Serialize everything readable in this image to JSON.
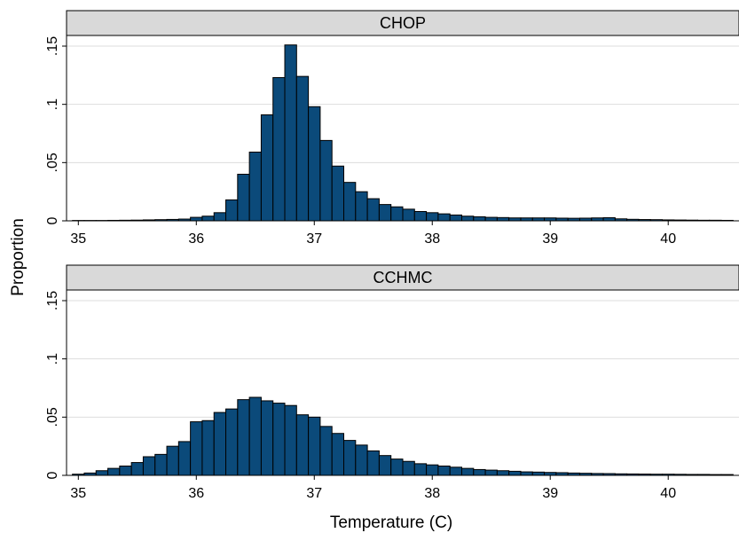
{
  "figure": {
    "ylabel": "Proportion",
    "xlabel": "Temperature (C)"
  },
  "chart_data": [
    {
      "type": "bar",
      "title": "CHOP",
      "bin_width": 0.1,
      "xlim": [
        34.9,
        40.6
      ],
      "ylim": [
        0,
        0.15
      ],
      "xticks": [
        35,
        36,
        37,
        38,
        39,
        40
      ],
      "xtick_labels": [
        "35",
        "36",
        "37",
        "38",
        "39",
        "40"
      ],
      "yticks": [
        0,
        0.05,
        0.1,
        0.15
      ],
      "ytick_labels": [
        "0",
        ".05",
        ".1",
        ".15"
      ],
      "grid": true,
      "bar_color": "#0b4a7a",
      "bin_start": [
        34.95,
        35.05,
        35.15,
        35.25,
        35.35,
        35.45,
        35.55,
        35.65,
        35.75,
        35.85,
        35.95,
        36.05,
        36.15,
        36.25,
        36.35,
        36.45,
        36.55,
        36.65,
        36.75,
        36.85,
        36.95,
        37.05,
        37.15,
        37.25,
        37.35,
        37.45,
        37.55,
        37.65,
        37.75,
        37.85,
        37.95,
        38.05,
        38.15,
        38.25,
        38.35,
        38.45,
        38.55,
        38.65,
        38.75,
        38.85,
        38.95,
        39.05,
        39.15,
        39.25,
        39.35,
        39.45,
        39.55,
        39.65,
        39.75,
        39.85,
        39.95,
        40.05,
        40.15,
        40.25,
        40.35,
        40.45
      ],
      "values": [
        0.0003,
        0.0003,
        0.0003,
        0.0004,
        0.0005,
        0.0006,
        0.0008,
        0.001,
        0.0012,
        0.0015,
        0.003,
        0.004,
        0.007,
        0.018,
        0.04,
        0.059,
        0.091,
        0.123,
        0.151,
        0.124,
        0.098,
        0.069,
        0.047,
        0.033,
        0.025,
        0.019,
        0.014,
        0.012,
        0.01,
        0.008,
        0.007,
        0.006,
        0.005,
        0.004,
        0.0035,
        0.003,
        0.0028,
        0.0025,
        0.0025,
        0.0025,
        0.0025,
        0.0023,
        0.0022,
        0.0023,
        0.0025,
        0.0027,
        0.0017,
        0.0013,
        0.0011,
        0.001,
        0.0008,
        0.0007,
        0.0006,
        0.0005,
        0.0005,
        0.0004
      ]
    },
    {
      "type": "bar",
      "title": "CCHMC",
      "bin_width": 0.1,
      "xlim": [
        34.9,
        40.6
      ],
      "ylim": [
        0,
        0.15
      ],
      "xticks": [
        35,
        36,
        37,
        38,
        39,
        40
      ],
      "xtick_labels": [
        "35",
        "36",
        "37",
        "38",
        "39",
        "40"
      ],
      "yticks": [
        0,
        0.05,
        0.1,
        0.15
      ],
      "ytick_labels": [
        "0",
        ".05",
        ".1",
        ".15"
      ],
      "grid": true,
      "bar_color": "#0b4a7a",
      "bin_start": [
        34.95,
        35.05,
        35.15,
        35.25,
        35.35,
        35.45,
        35.55,
        35.65,
        35.75,
        35.85,
        35.95,
        36.05,
        36.15,
        36.25,
        36.35,
        36.45,
        36.55,
        36.65,
        36.75,
        36.85,
        36.95,
        37.05,
        37.15,
        37.25,
        37.35,
        37.45,
        37.55,
        37.65,
        37.75,
        37.85,
        37.95,
        38.05,
        38.15,
        38.25,
        38.35,
        38.45,
        38.55,
        38.65,
        38.75,
        38.85,
        38.95,
        39.05,
        39.15,
        39.25,
        39.35,
        39.45,
        39.55,
        39.65,
        39.75,
        39.85,
        39.95,
        40.05,
        40.15,
        40.25,
        40.35,
        40.45
      ],
      "values": [
        0.001,
        0.002,
        0.004,
        0.006,
        0.008,
        0.011,
        0.016,
        0.018,
        0.025,
        0.029,
        0.046,
        0.047,
        0.054,
        0.057,
        0.065,
        0.067,
        0.064,
        0.062,
        0.06,
        0.052,
        0.05,
        0.042,
        0.036,
        0.03,
        0.026,
        0.021,
        0.017,
        0.014,
        0.012,
        0.01,
        0.009,
        0.008,
        0.007,
        0.006,
        0.005,
        0.0045,
        0.004,
        0.0035,
        0.003,
        0.0028,
        0.0025,
        0.0023,
        0.002,
        0.0018,
        0.0016,
        0.0015,
        0.0013,
        0.0012,
        0.0011,
        0.001,
        0.001,
        0.0009,
        0.0008,
        0.0008,
        0.0007,
        0.0007
      ]
    }
  ]
}
